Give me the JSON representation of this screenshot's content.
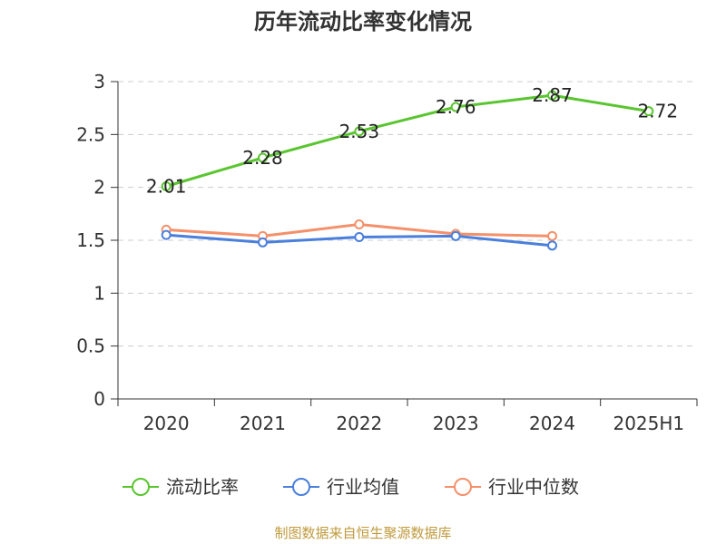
{
  "chart_data": {
    "type": "line",
    "title": "历年流动比率变化情况",
    "categories": [
      "2020",
      "2021",
      "2022",
      "2023",
      "2024",
      "2025H1"
    ],
    "ylim": [
      0,
      3
    ],
    "yticks": [
      "0",
      "0.5",
      "1",
      "1.5",
      "2",
      "2.5",
      "3"
    ],
    "grid": true,
    "legend_position": "bottom",
    "series": [
      {
        "name": "流动比率",
        "color": "#5ac530",
        "values": [
          2.01,
          2.28,
          2.53,
          2.76,
          2.87,
          2.72
        ],
        "labels": [
          "2.01",
          "2.28",
          "2.53",
          "2.76",
          "2.87",
          "2.72"
        ]
      },
      {
        "name": "行业均值",
        "color": "#4a7fdc",
        "values": [
          1.55,
          1.48,
          1.53,
          1.54,
          1.45,
          null
        ]
      },
      {
        "name": "行业中位数",
        "color": "#f4906a",
        "values": [
          1.6,
          1.54,
          1.65,
          1.56,
          1.54,
          null
        ]
      }
    ],
    "source": "制图数据来自恒生聚源数据库",
    "source_color": "#c09a3c"
  }
}
